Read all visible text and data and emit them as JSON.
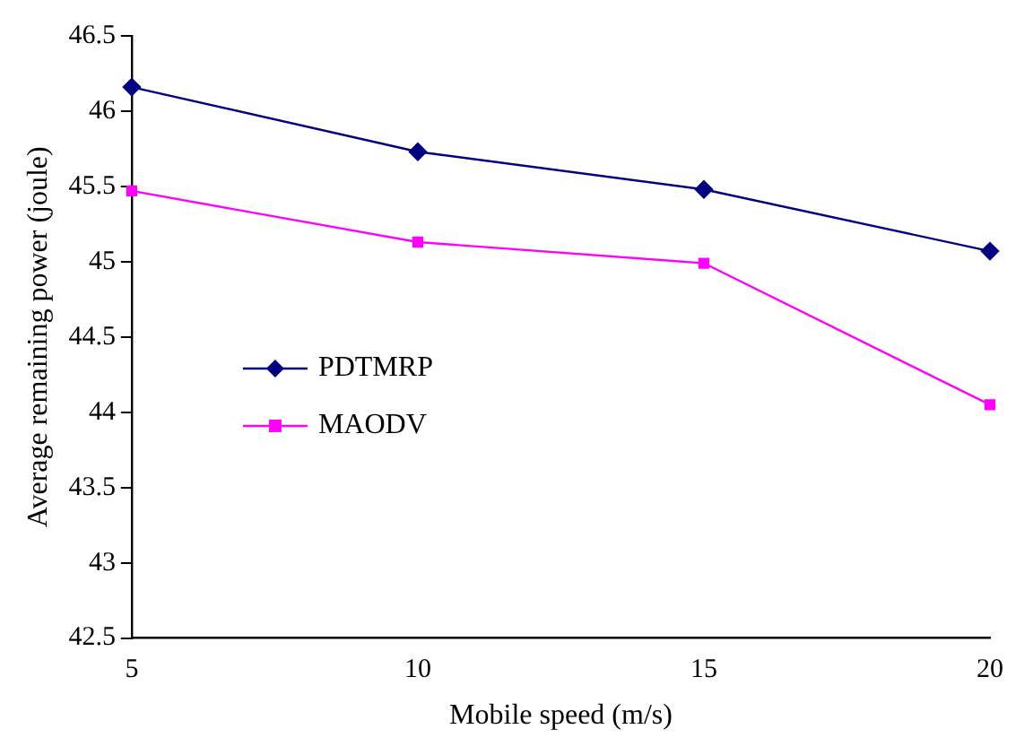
{
  "chart_data": {
    "type": "line",
    "xlabel": "Mobile speed (m/s)",
    "ylabel": "Average remaining power (joule)",
    "x": [
      5,
      10,
      15,
      20
    ],
    "xlim": [
      5,
      20
    ],
    "xticks": [
      5,
      10,
      15,
      20
    ],
    "ylim": [
      42.5,
      46.5
    ],
    "yticks": [
      42.5,
      43,
      43.5,
      44,
      44.5,
      45,
      45.5,
      46,
      46.5
    ],
    "grid": false,
    "legend": "left",
    "series": [
      {
        "name": "PDTMRP",
        "color": "#000080",
        "marker": "diamond",
        "values": [
          46.16,
          45.73,
          45.48,
          45.07
        ]
      },
      {
        "name": "MAODV",
        "color": "#ff00ff",
        "marker": "square",
        "values": [
          45.47,
          45.13,
          44.99,
          44.05
        ]
      }
    ]
  }
}
